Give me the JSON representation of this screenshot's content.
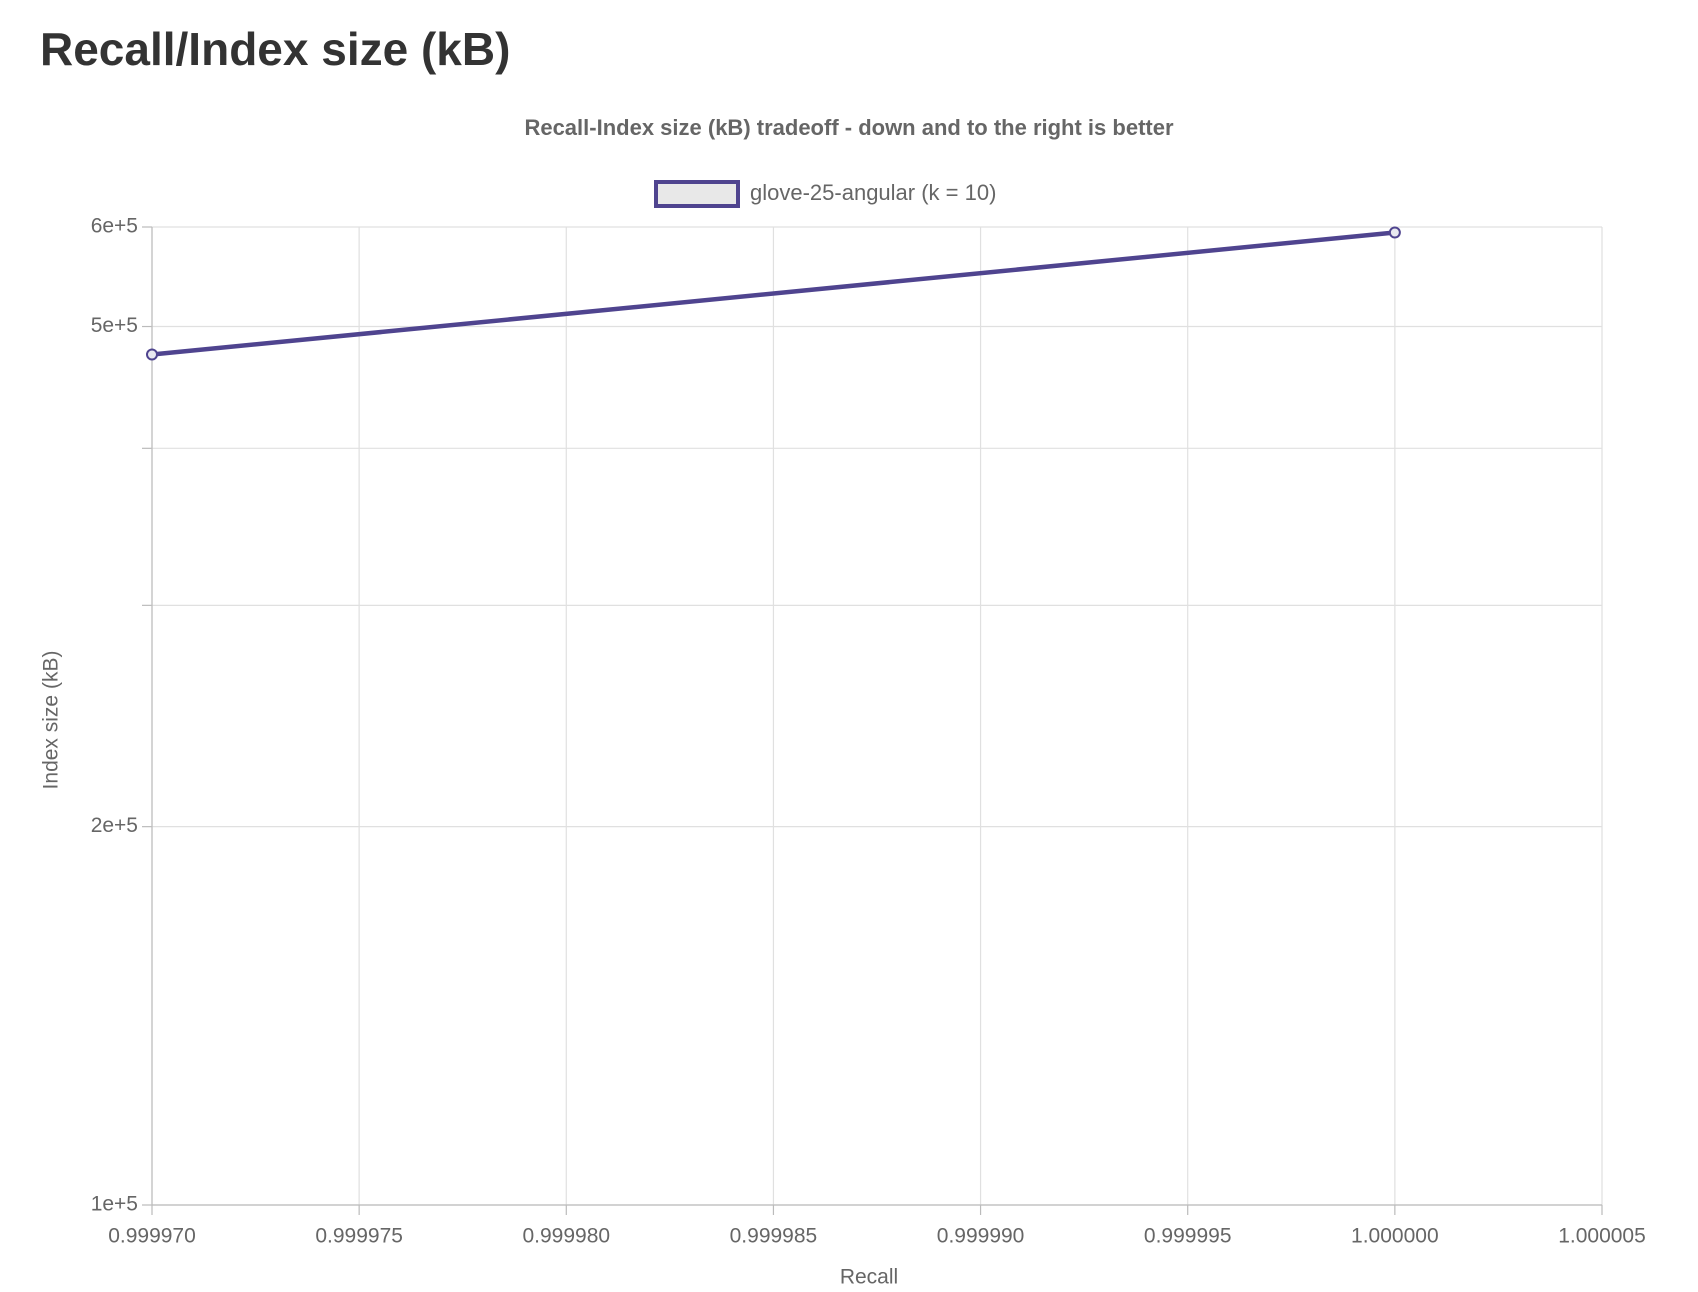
{
  "heading": "Recall/Index size (kB)",
  "chart_data": {
    "type": "line",
    "title": "Recall-Index size (kB) tradeoff - down and to the right is better",
    "x_label": "Recall",
    "y_label": "Index size (kB)",
    "x": [
      0.99997,
      1.0
    ],
    "series": [
      {
        "name": "glove-25-angular (k = 10)",
        "color": "#4f448f",
        "values": [
          475000,
          594000
        ]
      }
    ],
    "xlim": [
      0.99997,
      1.000005
    ],
    "xticks": [
      {
        "value": 0.99997,
        "label": "0.999970"
      },
      {
        "value": 0.999975,
        "label": "0.999975"
      },
      {
        "value": 0.99998,
        "label": "0.999980"
      },
      {
        "value": 0.999985,
        "label": "0.999985"
      },
      {
        "value": 0.99999,
        "label": "0.999990"
      },
      {
        "value": 0.999995,
        "label": "0.999995"
      },
      {
        "value": 1.0,
        "label": "1.000000"
      },
      {
        "value": 1.000005,
        "label": "1.000005"
      }
    ],
    "ylim": [
      100000,
      600000
    ],
    "yticks": [
      {
        "value": 100000,
        "label": "1e+5"
      },
      {
        "value": 200000,
        "label": "2e+5"
      },
      {
        "value": 500000,
        "label": "5e+5"
      },
      {
        "value": 600000,
        "label": "6e+5"
      }
    ],
    "minor_yticks": [
      300000,
      400000
    ],
    "log_y": true,
    "grid": true,
    "legend": "top"
  }
}
